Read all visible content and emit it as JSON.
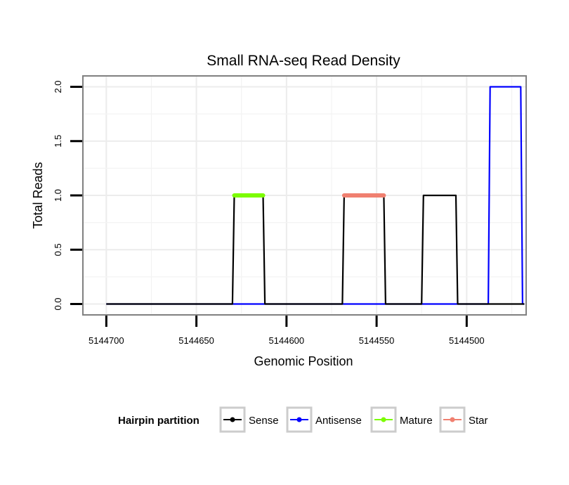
{
  "chart_data": {
    "type": "line",
    "title": "Small RNA-seq Read Density",
    "xlabel": "Genomic Position",
    "ylabel": "Total Reads",
    "xlim": [
      5144713,
      5144467
    ],
    "ylim": [
      -0.1,
      2.1
    ],
    "x_reversed": true,
    "xticks": [
      5144700,
      5144650,
      5144600,
      5144550,
      5144500
    ],
    "xtick_labels": [
      "5144700",
      "5144650",
      "5144600",
      "5144550",
      "5144500"
    ],
    "yticks": [
      0,
      0.5,
      1,
      1.5,
      2
    ],
    "ytick_labels": [
      "0.0",
      "0.5",
      "1.0",
      "1.5",
      "2.0"
    ],
    "legend": {
      "title": "Hairpin partition",
      "position": "bottom",
      "entries": [
        {
          "label": "Sense",
          "color": "#000000"
        },
        {
          "label": "Antisense",
          "color": "#0000FF"
        },
        {
          "label": "Mature",
          "color": "#7CFC00"
        },
        {
          "label": "Star",
          "color": "#F08070"
        }
      ]
    },
    "series": [
      {
        "name": "Antisense",
        "color": "#0000FF",
        "points": [
          [
            5144700,
            0
          ],
          [
            5144488,
            0
          ],
          [
            5144487,
            2
          ],
          [
            5144470,
            2
          ],
          [
            5144469,
            0
          ],
          [
            5144468,
            0
          ]
        ]
      },
      {
        "name": "Sense",
        "color": "#000000",
        "points": [
          [
            5144700,
            0
          ],
          [
            5144630,
            0
          ],
          [
            5144629,
            1
          ],
          [
            5144613,
            1
          ],
          [
            5144612,
            0
          ],
          [
            5144569,
            0
          ],
          [
            5144568,
            1
          ],
          [
            5144546,
            1
          ],
          [
            5144545,
            0
          ],
          [
            5144525,
            0
          ],
          [
            5144524,
            1
          ],
          [
            5144506,
            1
          ],
          [
            5144505,
            0
          ],
          [
            5144468,
            0
          ]
        ]
      },
      {
        "name": "Mature",
        "color": "#7CFC00",
        "points": [
          [
            5144629,
            1
          ],
          [
            5144613,
            1
          ]
        ]
      },
      {
        "name": "Star",
        "color": "#F08070",
        "points": [
          [
            5144568,
            1
          ],
          [
            5144546,
            1
          ]
        ]
      }
    ]
  }
}
